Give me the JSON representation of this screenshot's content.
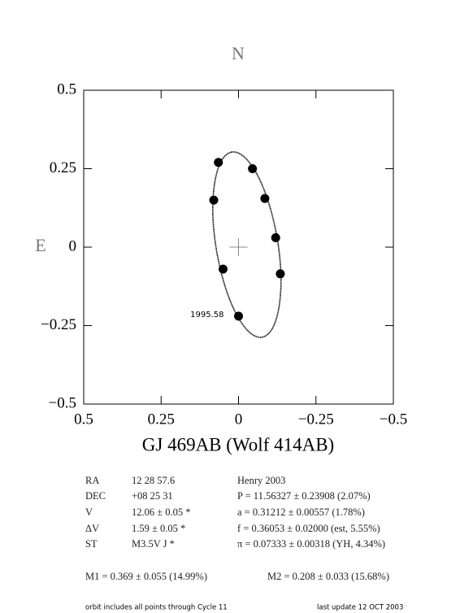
{
  "chart_data": {
    "type": "scatter",
    "title": "GJ 469AB (Wolf 414AB)",
    "top_label": "N",
    "left_label": "E",
    "xlim": [
      0.5,
      -0.5
    ],
    "ylim": [
      -0.5,
      0.5
    ],
    "xticks": [
      0.5,
      0.25,
      0,
      {
        "value": -0.25,
        "label": "−0.25"
      },
      {
        "value": -0.5,
        "label": "−0.5"
      }
    ],
    "yticks": [
      {
        "value": -0.5,
        "label": "−0.5"
      },
      {
        "value": -0.25,
        "label": "−0.25"
      },
      0,
      0.25,
      0.5
    ],
    "center_mark": [
      0,
      0
    ],
    "series": [
      {
        "type": "line",
        "color": "#000000",
        "x": [
          0.022,
          0.056,
          0.077,
          0.083,
          0.0715,
          0.045,
          0.008,
          -0.035,
          -0.076,
          -0.11,
          -0.131,
          -0.137,
          -0.1255,
          -0.099,
          -0.062,
          -0.019,
          0.022
        ],
        "y": [
          0.303,
          0.274,
          0.205,
          0.106,
          -0.008,
          -0.12,
          -0.212,
          -0.271,
          -0.287,
          -0.258,
          -0.189,
          -0.09,
          0.024,
          0.136,
          0.228,
          0.287,
          0.303
        ]
      },
      {
        "type": "scatter",
        "color": "#000000",
        "x": [
          0.065,
          -0.045,
          0.08,
          -0.085,
          -0.12,
          0.05,
          -0.135,
          0
        ],
        "y": [
          0.27,
          0.25,
          0.15,
          0.155,
          0.03,
          -0.07,
          -0.085,
          -0.22
        ]
      }
    ],
    "annotations": [
      {
        "text": "1995.58",
        "x": 0,
        "y": -0.22
      }
    ]
  },
  "info": {
    "rows": [
      [
        "RA",
        "12 28 57.6",
        "Henry 2003"
      ],
      [
        "DEC",
        "+08 25 31",
        "P = 11.56327 ± 0.23908 (2.07%)"
      ],
      [
        "V",
        "12.06 ± 0.05 *",
        "a = 0.31212 ± 0.00557 (1.78%)"
      ],
      [
        "ΔV",
        "1.59 ± 0.05 *",
        "f = 0.36053 ± 0.02000 (est, 5.55%)"
      ],
      [
        "ST",
        "M3.5V J *",
        "π = 0.07333 ± 0.00318 (YH, 4.34%)"
      ]
    ],
    "masses": [
      "M1 = 0.369 ± 0.055 (14.99%)",
      "M2 = 0.208 ± 0.033 (15.68%)"
    ],
    "footer_left": "orbit includes all points through Cycle 11",
    "footer_right": "last update 12 OCT 2003"
  }
}
